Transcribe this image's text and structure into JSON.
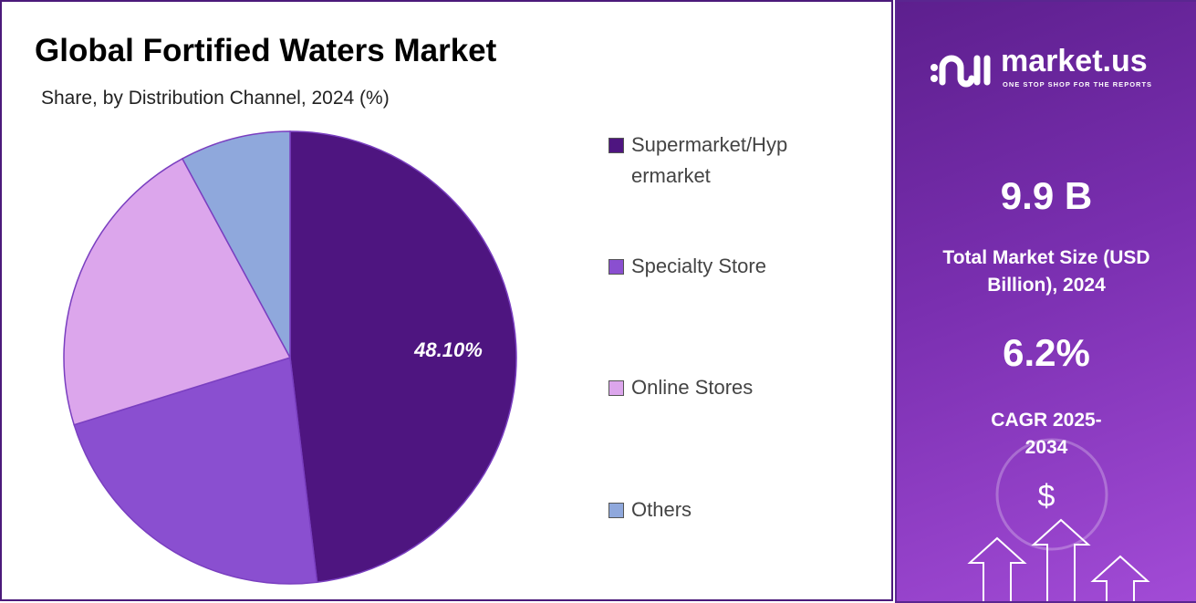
{
  "chart_data": {
    "type": "pie",
    "title": "Global Fortified Waters Market",
    "subtitle": "Share, by  Distribution Channel, 2024 (%)",
    "categories": [
      "Supermarket/Hypermarket",
      "Specialty Store",
      "Online Stores",
      "Others"
    ],
    "values": [
      48.1,
      22.1,
      21.9,
      7.9
    ],
    "colors": [
      "#4e1580",
      "#8a4fd0",
      "#dca6ec",
      "#8fa8dc"
    ],
    "data_labels": [
      "48.10%",
      "",
      "",
      ""
    ],
    "legend_position": "right"
  },
  "legend": [
    "Supermarket/Hyp ermarket",
    "Specialty Store",
    "Online Stores",
    "Others"
  ],
  "sidebar": {
    "brand": "market.us",
    "tagline": "ONE STOP SHOP FOR THE REPORTS",
    "market_size": "9.9 B",
    "market_size_label": "Total Market Size (USD Billion), 2024",
    "cagr": "6.2%",
    "cagr_label": "CAGR 2025-2034",
    "dollar_icon": "$"
  }
}
